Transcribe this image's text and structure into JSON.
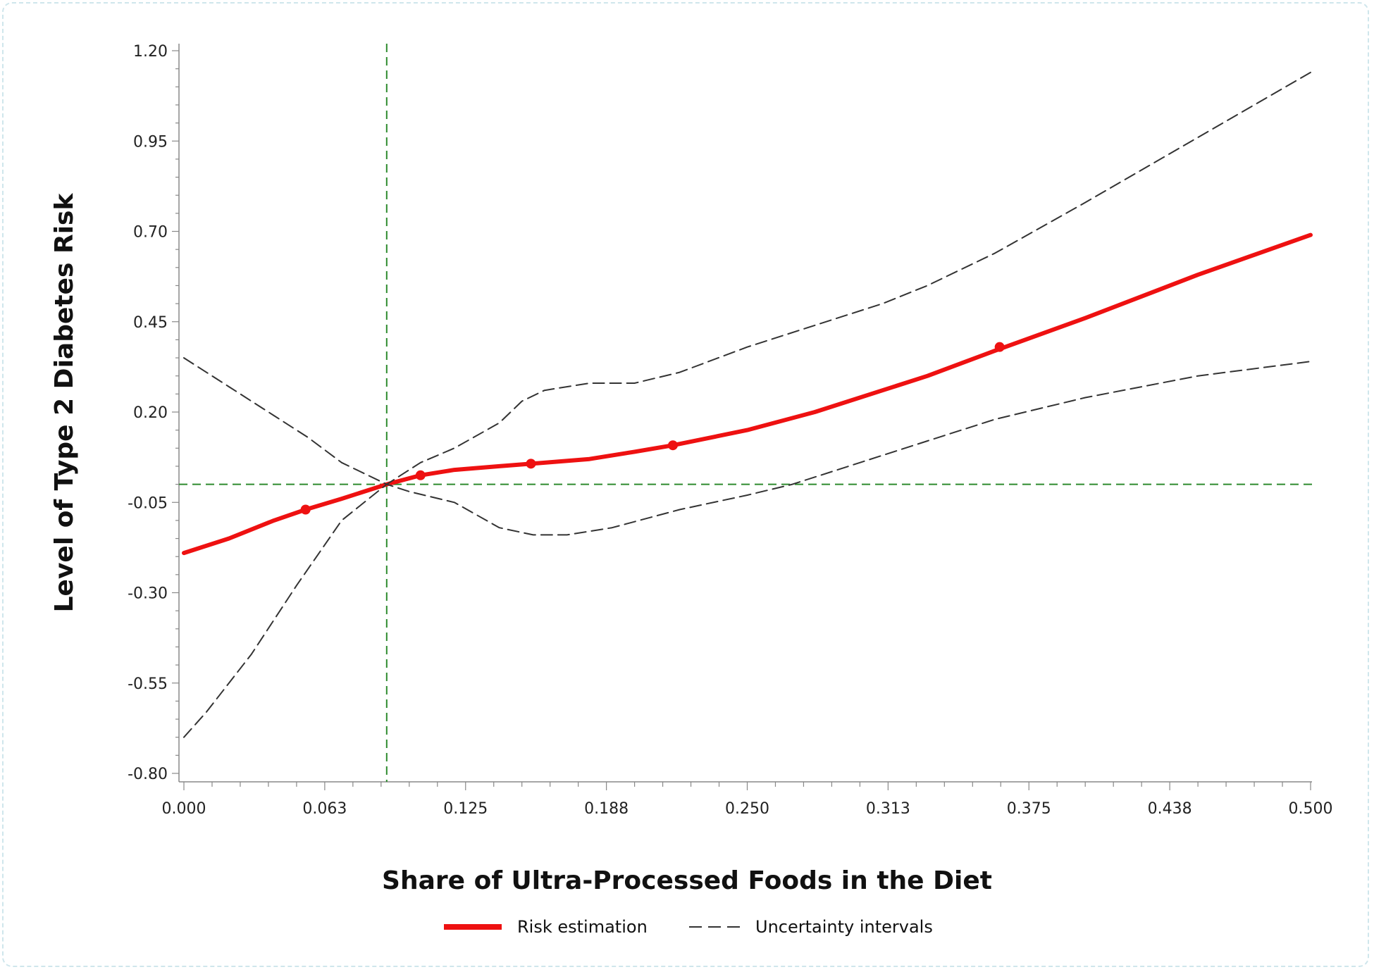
{
  "chart_data": {
    "type": "line",
    "title": "",
    "xlabel": "Share of Ultra-Processed Foods in the Diet",
    "ylabel": "Level of Type 2 Diabetes Risk",
    "xlim": [
      0,
      0.5
    ],
    "ylim": [
      -0.8,
      1.2
    ],
    "x_ticks": [
      "0.000",
      "0.063",
      "0.125",
      "0.188",
      "0.250",
      "0.313",
      "0.375",
      "0.438",
      "0.500"
    ],
    "y_ticks": [
      "1.20",
      "0.95",
      "0.70",
      "0.45",
      "0.20",
      "-0.05",
      "-0.30",
      "-0.55",
      "-0.80"
    ],
    "reference_lines": {
      "vertical_x": 0.09,
      "horizontal_y": 0.0
    },
    "series": [
      {
        "name": "Risk estimation",
        "color": "#ee1111",
        "style": "solid",
        "x": [
          0,
          0.02,
          0.04,
          0.054,
          0.07,
          0.09,
          0.105,
          0.12,
          0.14,
          0.154,
          0.18,
          0.2,
          0.217,
          0.25,
          0.28,
          0.31,
          0.33,
          0.36,
          0.4,
          0.45,
          0.5
        ],
        "y": [
          -0.19,
          -0.15,
          -0.1,
          -0.07,
          -0.04,
          0.0,
          0.025,
          0.04,
          0.05,
          0.057,
          0.07,
          0.09,
          0.108,
          0.15,
          0.2,
          0.26,
          0.3,
          0.37,
          0.46,
          0.58,
          0.69
        ]
      },
      {
        "name": "Uncertainty intervals",
        "color": "#333333",
        "style": "dashed",
        "x": [
          0,
          0.02,
          0.04,
          0.055,
          0.07,
          0.09,
          0.105,
          0.12,
          0.14,
          0.15,
          0.16,
          0.18,
          0.2,
          0.22,
          0.25,
          0.28,
          0.31,
          0.33,
          0.36,
          0.4,
          0.45,
          0.5
        ],
        "y": [
          0.35,
          0.27,
          0.19,
          0.13,
          0.06,
          0.0,
          0.06,
          0.1,
          0.17,
          0.23,
          0.26,
          0.28,
          0.28,
          0.31,
          0.38,
          0.44,
          0.5,
          0.55,
          0.64,
          0.78,
          0.96,
          1.14
        ]
      },
      {
        "name": "",
        "color": "#333333",
        "style": "dashed",
        "x": [
          0,
          0.01,
          0.03,
          0.05,
          0.07,
          0.09,
          0.1,
          0.12,
          0.14,
          0.155,
          0.17,
          0.19,
          0.22,
          0.25,
          0.27,
          0.3,
          0.33,
          0.36,
          0.4,
          0.45,
          0.5
        ],
        "y": [
          -0.7,
          -0.63,
          -0.47,
          -0.28,
          -0.1,
          0.0,
          -0.02,
          -0.05,
          -0.12,
          -0.14,
          -0.14,
          -0.12,
          -0.07,
          -0.03,
          0.0,
          0.06,
          0.12,
          0.18,
          0.24,
          0.3,
          0.34
        ]
      }
    ],
    "markers": {
      "x": [
        0.054,
        0.105,
        0.154,
        0.217,
        0.362
      ],
      "y": [
        -0.07,
        0.025,
        0.057,
        0.108,
        0.38
      ]
    },
    "legend": {
      "placement": "bottom-center",
      "entries": [
        {
          "label": "Risk estimation",
          "color": "#ee1111",
          "style": "solid"
        },
        {
          "label": "Uncertainty intervals",
          "color": "#333333",
          "style": "dashed"
        }
      ]
    },
    "reference_color": "#2e8b2e"
  }
}
